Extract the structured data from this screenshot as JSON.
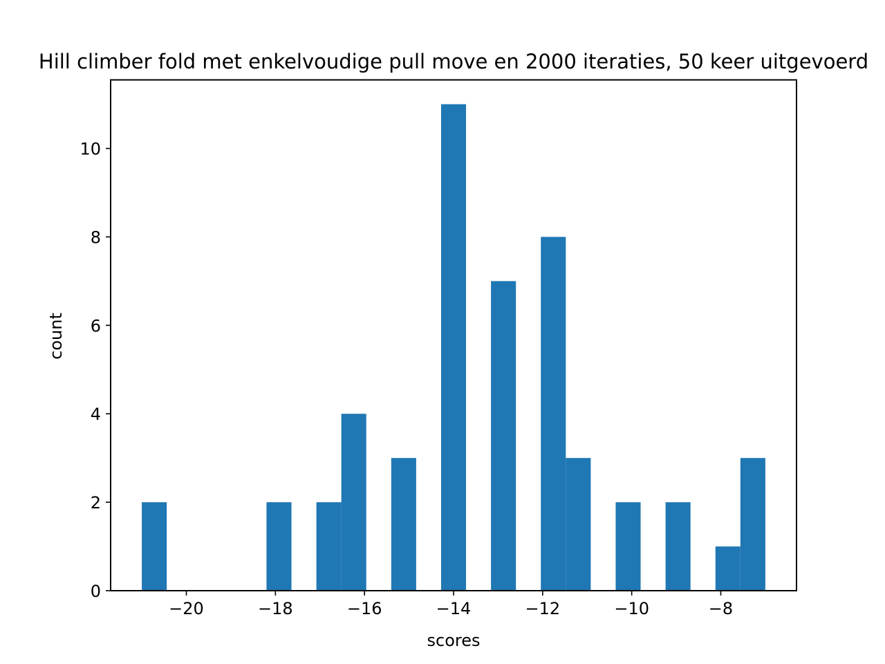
{
  "chart_data": {
    "type": "bar",
    "title": "Hill climber fold met enkelvoudige pull move en 2000 iteraties, 50 keer uitgevoerd",
    "xlabel": "scores",
    "ylabel": "count",
    "xlim": [
      -21.7,
      -6.3
    ],
    "ylim": [
      0,
      11.55
    ],
    "grid": false,
    "bar_color": "#1f77b4",
    "x_ticks": [
      {
        "value": -20,
        "label": "−20"
      },
      {
        "value": -18,
        "label": "−18"
      },
      {
        "value": -16,
        "label": "−16"
      },
      {
        "value": -14,
        "label": "−14"
      },
      {
        "value": -12,
        "label": "−12"
      },
      {
        "value": -10,
        "label": "−10"
      },
      {
        "value": -8,
        "label": "−8"
      }
    ],
    "y_ticks": [
      {
        "value": 0,
        "label": "0"
      },
      {
        "value": 2,
        "label": "2"
      },
      {
        "value": 4,
        "label": "4"
      },
      {
        "value": 6,
        "label": "6"
      },
      {
        "value": 8,
        "label": "8"
      },
      {
        "value": 10,
        "label": "10"
      }
    ],
    "bins": [
      {
        "x0": -21.0,
        "x1": -20.44,
        "count": 2
      },
      {
        "x0": -20.44,
        "x1": -19.88,
        "count": 0
      },
      {
        "x0": -19.88,
        "x1": -19.32,
        "count": 0
      },
      {
        "x0": -19.32,
        "x1": -18.76,
        "count": 0
      },
      {
        "x0": -18.2,
        "x1": -17.64,
        "count": 2
      },
      {
        "x0": -17.08,
        "x1": -16.52,
        "count": 2
      },
      {
        "x0": -16.52,
        "x1": -15.96,
        "count": 4
      },
      {
        "x0": -15.4,
        "x1": -14.84,
        "count": 3
      },
      {
        "x0": -14.28,
        "x1": -13.72,
        "count": 11
      },
      {
        "x0": -13.16,
        "x1": -12.6,
        "count": 7
      },
      {
        "x0": -12.04,
        "x1": -11.48,
        "count": 8
      },
      {
        "x0": -11.48,
        "x1": -10.92,
        "count": 3
      },
      {
        "x0": -10.36,
        "x1": -9.8,
        "count": 2
      },
      {
        "x0": -9.24,
        "x1": -8.68,
        "count": 2
      },
      {
        "x0": -8.12,
        "x1": -7.56,
        "count": 1
      },
      {
        "x0": -7.56,
        "x1": -7.0,
        "count": 3
      }
    ]
  }
}
